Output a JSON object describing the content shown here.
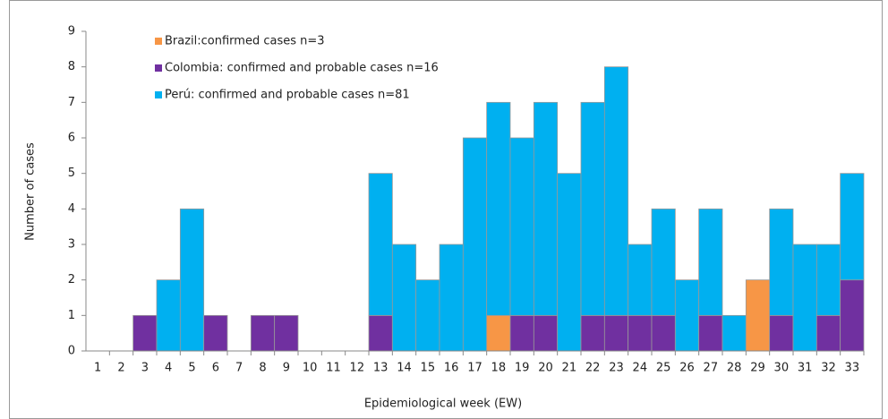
{
  "chart_data": {
    "type": "stacked_bar",
    "x_label": "Epidemiological week (EW)",
    "y_label": "Number of cases",
    "categories": [
      "1",
      "2",
      "3",
      "4",
      "5",
      "6",
      "7",
      "8",
      "9",
      "10",
      "11",
      "12",
      "13",
      "14",
      "15",
      "16",
      "17",
      "18",
      "19",
      "20",
      "21",
      "22",
      "23",
      "24",
      "25",
      "26",
      "27",
      "28",
      "29",
      "30",
      "31",
      "32",
      "33"
    ],
    "series": [
      {
        "name": "Brazil:confirmed cases n=3",
        "color": "#f79646",
        "values": [
          0,
          0,
          0,
          0,
          0,
          0,
          0,
          0,
          0,
          0,
          0,
          0,
          0,
          0,
          0,
          0,
          0,
          1,
          0,
          0,
          0,
          0,
          0,
          0,
          0,
          0,
          0,
          0,
          2,
          0,
          0,
          0,
          0
        ]
      },
      {
        "name": "Colombia: confirmed and probable cases n=16",
        "color": "#7030a0",
        "values": [
          0,
          0,
          1,
          0,
          0,
          1,
          0,
          1,
          1,
          0,
          0,
          0,
          1,
          0,
          0,
          0,
          0,
          0,
          1,
          1,
          0,
          1,
          1,
          1,
          1,
          0,
          1,
          0,
          0,
          1,
          0,
          1,
          2
        ]
      },
      {
        "name": "Perú: confirmed and probable cases n=81",
        "color": "#00b0f0",
        "values": [
          0,
          0,
          0,
          2,
          4,
          0,
          0,
          0,
          0,
          0,
          0,
          0,
          4,
          3,
          2,
          3,
          6,
          6,
          5,
          6,
          5,
          6,
          7,
          2,
          3,
          2,
          3,
          1,
          0,
          3,
          3,
          2,
          3
        ]
      }
    ],
    "ylim": [
      0,
      9
    ],
    "yticks": [
      0,
      1,
      2,
      3,
      4,
      5,
      6,
      7,
      8,
      9
    ],
    "grid": false,
    "legend": "top-left"
  }
}
